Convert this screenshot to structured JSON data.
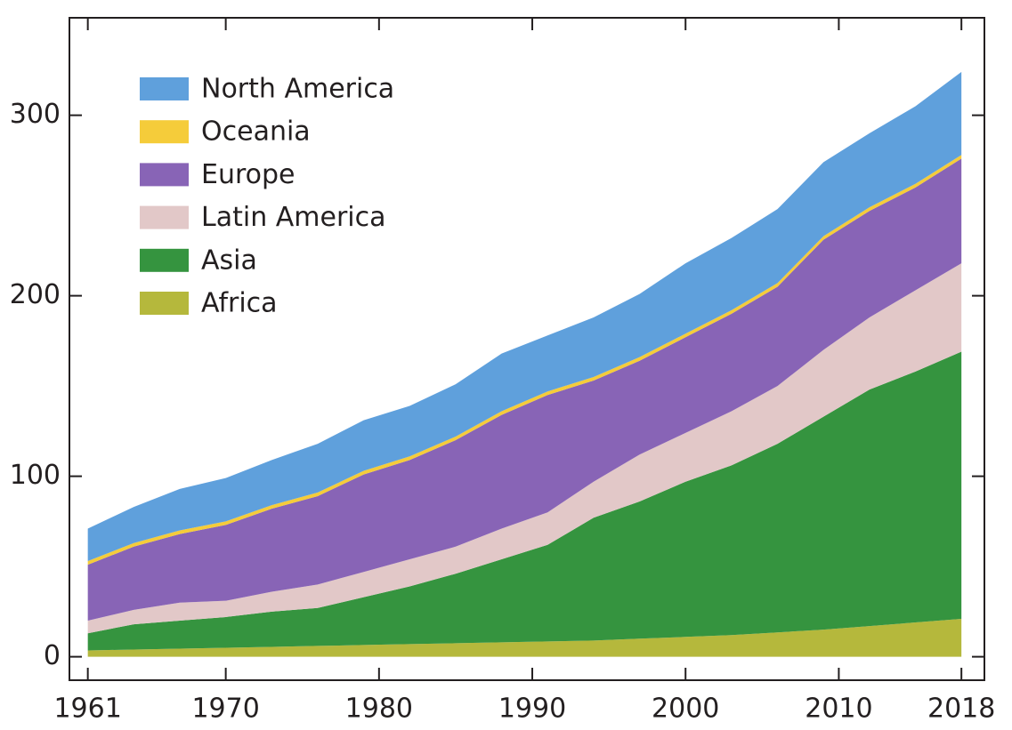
{
  "chart_data": {
    "type": "stacked_area",
    "x": [
      1961,
      1964,
      1967,
      1970,
      1973,
      1976,
      1979,
      1982,
      1985,
      1988,
      1991,
      1994,
      1997,
      2000,
      2003,
      2006,
      2009,
      2012,
      2015,
      2018
    ],
    "series": [
      {
        "name": "Africa",
        "color": "#b5b83c",
        "values": [
          3.5,
          4,
          4.5,
          5,
          5.5,
          6,
          6.5,
          7,
          7.5,
          8,
          8.5,
          9,
          10,
          11,
          12,
          13.5,
          15,
          17,
          19,
          21
        ]
      },
      {
        "name": "Asia",
        "color": "#35943f",
        "values": [
          9.5,
          14,
          15.5,
          17,
          19.5,
          21,
          26.5,
          32,
          38.5,
          46,
          53.5,
          68,
          76,
          86,
          94,
          104.5,
          118,
          131,
          139,
          148
        ]
      },
      {
        "name": "Latin America",
        "color": "#e2c8c8",
        "values": [
          7,
          8,
          10,
          9,
          11,
          13,
          14,
          15,
          15,
          17,
          18,
          20,
          26,
          27,
          30,
          32,
          37,
          40,
          45,
          49
        ]
      },
      {
        "name": "Europe",
        "color": "#8864b6",
        "values": [
          31,
          35,
          38,
          42,
          46,
          49,
          54,
          55,
          59,
          63,
          65,
          56,
          52,
          53,
          54,
          55,
          61,
          59,
          57,
          58
        ]
      },
      {
        "name": "Oceania",
        "color": "#f5cc3a",
        "values": [
          2,
          2,
          2,
          2,
          2,
          2,
          2,
          2,
          2,
          2,
          2,
          2,
          2,
          2,
          2,
          2,
          2,
          2,
          2,
          2
        ]
      },
      {
        "name": "North America",
        "color": "#5fa0dc",
        "values": [
          18,
          20,
          23,
          24,
          25,
          27,
          28,
          28,
          29,
          32,
          31,
          33,
          35,
          39,
          40,
          41,
          41,
          41,
          43,
          46
        ]
      }
    ],
    "xlim": [
      1959.8,
      2019.5
    ],
    "xticks": [
      1961,
      1970,
      1980,
      1990,
      2000,
      2010,
      2018
    ],
    "ylim": [
      -13,
      354
    ],
    "yticks": [
      0,
      100,
      200,
      300
    ]
  }
}
